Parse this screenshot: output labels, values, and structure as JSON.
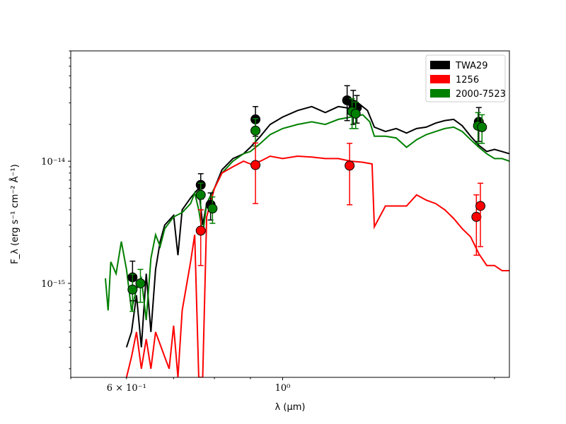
{
  "chart_data": {
    "type": "line",
    "xlabel": "λ (μm)",
    "ylabel": "F_λ (erg s⁻¹ cm⁻² Å⁻¹)",
    "xscale": "log",
    "yscale": "log",
    "xlim": [
      0.5,
      2.1
    ],
    "ylim": [
      1.7e-16,
      8e-14
    ],
    "xtick_labels": [
      {
        "value": 0.6,
        "label": "6 × 10⁻¹"
      },
      {
        "value": 1.0,
        "label": "10⁰"
      }
    ],
    "ytick_labels": [
      {
        "value": 1e-14,
        "label": "10⁻¹⁴"
      },
      {
        "value": 1e-15,
        "label": "10⁻¹⁵"
      }
    ],
    "legend": {
      "position": "top-right",
      "entries": [
        {
          "label": "TWA29",
          "color": "#000000"
        },
        {
          "label": "1256",
          "color": "#ff0000"
        },
        {
          "label": "2000-7523",
          "color": "#008000"
        }
      ]
    },
    "series": [
      {
        "name": "TWA29",
        "color": "#000000",
        "spectrum": [
          [
            0.6,
            3e-16
          ],
          [
            0.61,
            4e-16
          ],
          [
            0.62,
            8e-16
          ],
          [
            0.63,
            3e-16
          ],
          [
            0.64,
            1.2e-15
          ],
          [
            0.65,
            4e-16
          ],
          [
            0.66,
            1.3e-15
          ],
          [
            0.67,
            2.2e-15
          ],
          [
            0.68,
            3e-15
          ],
          [
            0.7,
            3.6e-15
          ],
          [
            0.71,
            1.7e-15
          ],
          [
            0.72,
            4e-15
          ],
          [
            0.74,
            5e-15
          ],
          [
            0.75,
            5.5e-15
          ],
          [
            0.76,
            6e-15
          ],
          [
            0.77,
            3e-15
          ],
          [
            0.78,
            4.5e-15
          ],
          [
            0.8,
            6e-15
          ],
          [
            0.82,
            8.5e-15
          ],
          [
            0.85,
            1.05e-14
          ],
          [
            0.88,
            1.15e-14
          ],
          [
            0.9,
            1.3e-14
          ],
          [
            0.93,
            1.6e-14
          ],
          [
            0.96,
            2e-14
          ],
          [
            1.0,
            2.3e-14
          ],
          [
            1.05,
            2.6e-14
          ],
          [
            1.1,
            2.8e-14
          ],
          [
            1.15,
            2.5e-14
          ],
          [
            1.2,
            2.8e-14
          ],
          [
            1.25,
            2.7e-14
          ],
          [
            1.28,
            3e-14
          ],
          [
            1.32,
            2.6e-14
          ],
          [
            1.35,
            1.9e-14
          ],
          [
            1.4,
            1.75e-14
          ],
          [
            1.45,
            1.85e-14
          ],
          [
            1.5,
            1.7e-14
          ],
          [
            1.55,
            1.85e-14
          ],
          [
            1.6,
            1.9e-14
          ],
          [
            1.65,
            2.05e-14
          ],
          [
            1.7,
            2.15e-14
          ],
          [
            1.75,
            2.2e-14
          ],
          [
            1.8,
            1.95e-14
          ],
          [
            1.85,
            1.6e-14
          ],
          [
            1.9,
            1.35e-14
          ],
          [
            1.95,
            1.2e-14
          ],
          [
            2.0,
            1.25e-14
          ],
          [
            2.05,
            1.2e-14
          ],
          [
            2.1,
            1.15e-14
          ]
        ],
        "photometry": [
          {
            "x": 0.612,
            "y": 1.12e-15,
            "err": 4e-16
          },
          {
            "x": 0.765,
            "y": 6.4e-15,
            "err": 1.5e-15
          },
          {
            "x": 0.79,
            "y": 4.4e-15,
            "err": 1.1e-15
          },
          {
            "x": 0.915,
            "y": 2.2e-14,
            "err": 6e-15
          },
          {
            "x": 1.235,
            "y": 3.15e-14,
            "err": 1e-14
          },
          {
            "x": 1.26,
            "y": 2.9e-14,
            "err": 9e-15
          },
          {
            "x": 1.275,
            "y": 2.75e-14,
            "err": 7e-15
          },
          {
            "x": 1.9,
            "y": 2.1e-14,
            "err": 6.5e-15
          }
        ]
      },
      {
        "name": "1256",
        "color": "#ff0000",
        "spectrum": [
          [
            0.6,
            1.7e-16
          ],
          [
            0.61,
            2.5e-16
          ],
          [
            0.62,
            4e-16
          ],
          [
            0.63,
            2e-16
          ],
          [
            0.64,
            3.5e-16
          ],
          [
            0.65,
            2e-16
          ],
          [
            0.66,
            4e-16
          ],
          [
            0.68,
            2.5e-16
          ],
          [
            0.69,
            2e-16
          ],
          [
            0.7,
            4.5e-16
          ],
          [
            0.71,
            1.7e-16
          ],
          [
            0.72,
            6e-16
          ],
          [
            0.74,
            1.5e-15
          ],
          [
            0.75,
            2.5e-15
          ],
          [
            0.76,
            1.7e-16
          ],
          [
            0.77,
            1.7e-16
          ],
          [
            0.78,
            3.5e-15
          ],
          [
            0.8,
            6e-15
          ],
          [
            0.82,
            8e-15
          ],
          [
            0.85,
            9e-15
          ],
          [
            0.88,
            1e-14
          ],
          [
            0.9,
            9.5e-15
          ],
          [
            0.93,
            1e-14
          ],
          [
            0.96,
            1.1e-14
          ],
          [
            1.0,
            1.05e-14
          ],
          [
            1.05,
            1.1e-14
          ],
          [
            1.1,
            1.08e-14
          ],
          [
            1.15,
            1.05e-14
          ],
          [
            1.2,
            1.05e-14
          ],
          [
            1.25,
            1e-14
          ],
          [
            1.3,
            9.8e-15
          ],
          [
            1.34,
            9.5e-15
          ],
          [
            1.35,
            2.9e-15
          ],
          [
            1.4,
            4.3e-15
          ],
          [
            1.5,
            4.3e-15
          ],
          [
            1.55,
            5.3e-15
          ],
          [
            1.6,
            4.8e-15
          ],
          [
            1.65,
            4.5e-15
          ],
          [
            1.7,
            4e-15
          ],
          [
            1.75,
            3.4e-15
          ],
          [
            1.8,
            2.8e-15
          ],
          [
            1.85,
            2.4e-15
          ],
          [
            1.9,
            1.75e-15
          ],
          [
            1.95,
            1.4e-15
          ],
          [
            2.0,
            1.4e-15
          ],
          [
            2.05,
            1.27e-15
          ],
          [
            2.1,
            1.27e-15
          ]
        ],
        "photometry": [
          {
            "x": 0.765,
            "y": 2.7e-15,
            "err": 1.3e-15
          },
          {
            "x": 0.915,
            "y": 9.3e-15,
            "err": 4.8e-15
          },
          {
            "x": 1.245,
            "y": 9.2e-15,
            "err": 4.8e-15
          },
          {
            "x": 1.885,
            "y": 3.5e-15,
            "err": 1.8e-15
          },
          {
            "x": 1.91,
            "y": 4.3e-15,
            "err": 2.3e-15
          }
        ]
      },
      {
        "name": "2000-7523",
        "color": "#008000",
        "spectrum": [
          [
            0.56,
            1.1e-15
          ],
          [
            0.565,
            6e-16
          ],
          [
            0.57,
            1.5e-15
          ],
          [
            0.58,
            1.2e-15
          ],
          [
            0.59,
            2.2e-15
          ],
          [
            0.6,
            1.3e-15
          ],
          [
            0.61,
            6e-16
          ],
          [
            0.62,
            9e-16
          ],
          [
            0.63,
            1.1e-15
          ],
          [
            0.64,
            5e-16
          ],
          [
            0.65,
            1.6e-15
          ],
          [
            0.66,
            2.5e-15
          ],
          [
            0.67,
            2e-15
          ],
          [
            0.68,
            2.8e-15
          ],
          [
            0.7,
            3.5e-15
          ],
          [
            0.72,
            3.8e-15
          ],
          [
            0.74,
            4.5e-15
          ],
          [
            0.75,
            5.5e-15
          ],
          [
            0.76,
            4e-15
          ],
          [
            0.77,
            2.5e-15
          ],
          [
            0.78,
            4.5e-15
          ],
          [
            0.8,
            6e-15
          ],
          [
            0.82,
            8e-15
          ],
          [
            0.85,
            1e-14
          ],
          [
            0.88,
            1.15e-14
          ],
          [
            0.9,
            1.2e-14
          ],
          [
            0.93,
            1.4e-14
          ],
          [
            0.96,
            1.65e-14
          ],
          [
            1.0,
            1.85e-14
          ],
          [
            1.05,
            2e-14
          ],
          [
            1.1,
            2.1e-14
          ],
          [
            1.15,
            2e-14
          ],
          [
            1.2,
            2.2e-14
          ],
          [
            1.25,
            2.3e-14
          ],
          [
            1.3,
            2.4e-14
          ],
          [
            1.33,
            2.1e-14
          ],
          [
            1.35,
            1.6e-14
          ],
          [
            1.4,
            1.6e-14
          ],
          [
            1.45,
            1.55e-14
          ],
          [
            1.5,
            1.3e-14
          ],
          [
            1.55,
            1.5e-14
          ],
          [
            1.6,
            1.65e-14
          ],
          [
            1.65,
            1.75e-14
          ],
          [
            1.7,
            1.85e-14
          ],
          [
            1.75,
            1.9e-14
          ],
          [
            1.8,
            1.75e-14
          ],
          [
            1.85,
            1.5e-14
          ],
          [
            1.9,
            1.3e-14
          ],
          [
            1.95,
            1.15e-14
          ],
          [
            2.0,
            1.05e-14
          ],
          [
            2.05,
            1.05e-14
          ],
          [
            2.1,
            1e-14
          ]
        ],
        "photometry": [
          {
            "x": 0.612,
            "y": 8.9e-16,
            "err": 3e-16
          },
          {
            "x": 0.628,
            "y": 1e-15,
            "err": 3e-16
          },
          {
            "x": 0.765,
            "y": 5.3e-15,
            "err": 1.3e-15
          },
          {
            "x": 0.795,
            "y": 4.1e-15,
            "err": 1e-15
          },
          {
            "x": 0.915,
            "y": 1.78e-14,
            "err": 4.5e-15
          },
          {
            "x": 1.255,
            "y": 2.55e-14,
            "err": 7e-15
          },
          {
            "x": 1.27,
            "y": 2.45e-14,
            "err": 6e-15
          },
          {
            "x": 1.895,
            "y": 1.95e-14,
            "err": 5.5e-15
          },
          {
            "x": 1.92,
            "y": 1.9e-14,
            "err": 5e-15
          }
        ]
      }
    ]
  }
}
